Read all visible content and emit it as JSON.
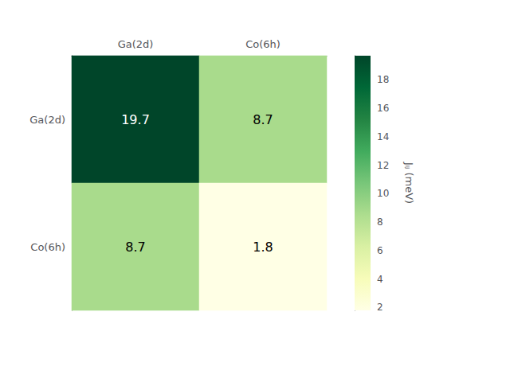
{
  "chart_data": {
    "type": "heatmap",
    "x": [
      "Ga(2d)",
      "Co(6h)"
    ],
    "y": [
      "Ga(2d)",
      "Co(6h)"
    ],
    "matrix": [
      [
        19.7,
        8.7
      ],
      [
        8.7,
        1.8
      ]
    ],
    "colors": [
      "#ffffe5",
      "#f7fcb9",
      "#d9f0a3",
      "#addd8e",
      "#78c679",
      "#41ab5d",
      "#238443",
      "#006837",
      "#004529"
    ],
    "colorbar": {
      "label": "Jᵢⱼ (meV)",
      "range": [
        1.8,
        19.7
      ],
      "ticks": [
        2,
        4,
        6,
        8,
        10,
        12,
        14,
        16,
        18
      ]
    },
    "data_labels": true
  }
}
